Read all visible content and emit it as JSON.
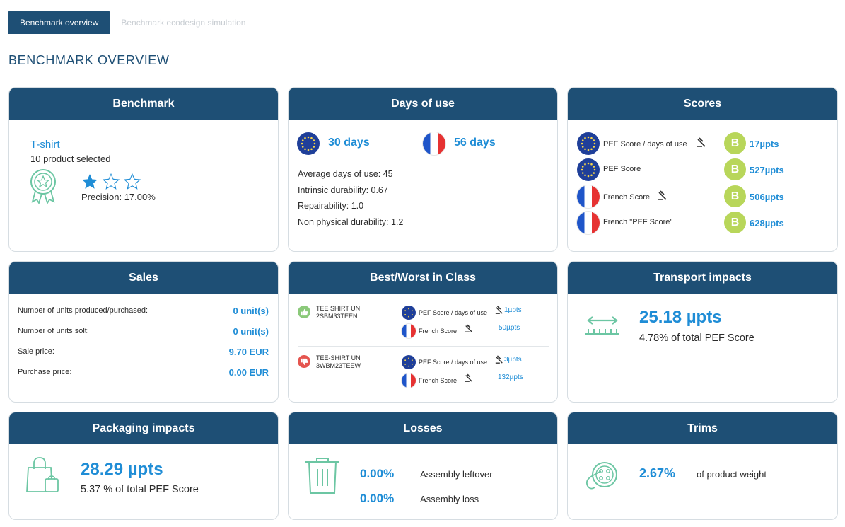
{
  "tabs": {
    "overview": "Benchmark overview",
    "simulation": "Benchmark ecodesign simulation"
  },
  "page_title": "BENCHMARK OVERVIEW",
  "benchmark": {
    "title": "Benchmark",
    "product": "T-shirt",
    "selected": "10 product selected",
    "precision": "Precision: 17.00%",
    "stars_filled": 1,
    "stars_total": 3
  },
  "days_of_use": {
    "title": "Days of use",
    "eu_days": "30 days",
    "fr_days": "56 days",
    "lines": [
      "Average days of use: 45",
      "Intrinsic durability: 0.67",
      "Repairability: 1.0",
      "Non physical durability: 1.2"
    ]
  },
  "scores": {
    "title": "Scores",
    "rows": [
      {
        "flag": "eu",
        "label": "PEF Score / days of use",
        "gavel": true,
        "grade": "B",
        "value": "17µpts"
      },
      {
        "flag": "eu",
        "label": "PEF Score",
        "gavel": false,
        "grade": "B",
        "value": "527µpts"
      },
      {
        "flag": "fr",
        "label": "French Score",
        "gavel": true,
        "grade": "B",
        "value": "506µpts"
      },
      {
        "flag": "fr",
        "label": "French \"PEF Score\"",
        "gavel": false,
        "grade": "B",
        "value": "628µpts"
      }
    ]
  },
  "sales": {
    "title": "Sales",
    "rows": [
      {
        "label": "Number of units produced/purchased:",
        "value": "0 unit(s)"
      },
      {
        "label": "Number of units solt:",
        "value": "0 unit(s)"
      },
      {
        "label": "Sale price:",
        "value": "9.70 EUR"
      },
      {
        "label": "Purchase price:",
        "value": "0.00 EUR"
      }
    ]
  },
  "best_worst": {
    "title": "Best/Worst in Class",
    "best": {
      "name_line1": "TEE SHIRT UN",
      "name_line2": "2SBM33TEEN",
      "pef_label": "PEF Score / days of use",
      "pef_value": "1µpts",
      "fr_label": "French Score",
      "fr_value": "50µpts"
    },
    "worst": {
      "name_line1": "TEE-SHIRT UN",
      "name_line2": "3WBM23TEEW",
      "pef_label": "PEF Score / days of use",
      "pef_value": "3µpts",
      "fr_label": "French Score",
      "fr_value": "132µpts"
    }
  },
  "transport": {
    "title": "Transport impacts",
    "value": "25.18 µpts",
    "subtitle": "4.78% of total PEF Score"
  },
  "packaging": {
    "title": "Packaging impacts",
    "value": "28.29 µpts",
    "subtitle": "5.37 % of total PEF Score"
  },
  "losses": {
    "title": "Losses",
    "rows": [
      {
        "value": "0.00%",
        "label": "Assembly leftover"
      },
      {
        "value": "0.00%",
        "label": "Assembly loss"
      }
    ]
  },
  "trims": {
    "title": "Trims",
    "value": "2.67%",
    "label": "of product weight"
  },
  "colors": {
    "header": "#1e4f75",
    "accent": "#1f8dd6",
    "icon_green": "#6cc6a3",
    "grade_b": "#b8d65a"
  }
}
